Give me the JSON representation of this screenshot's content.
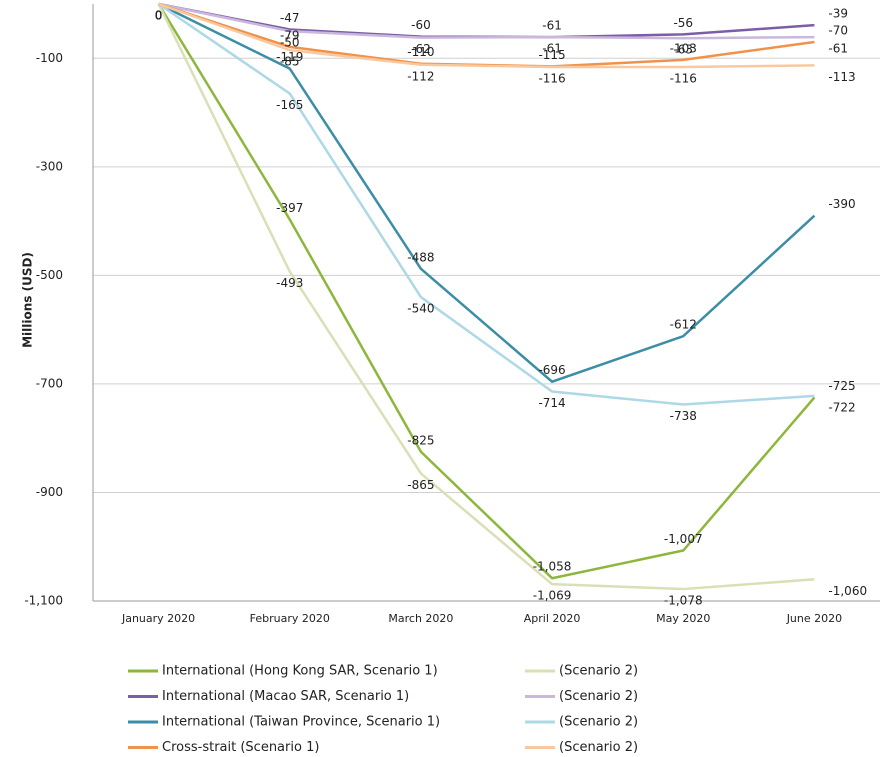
{
  "chart_data": {
    "type": "line",
    "y_label": "Millions (USD)",
    "categories": [
      "January 2020",
      "February 2020",
      "March 2020",
      "April 2020",
      "May 2020",
      "June 2020"
    ],
    "ylim": [
      -1100,
      0
    ],
    "yticks": [
      -100,
      -300,
      -500,
      -700,
      -900,
      {
        "value": -1100,
        "label": "-1,100"
      }
    ],
    "grid": true,
    "legend": "bottom",
    "series": [
      {
        "name": "International (Hong Kong SAR, Scenario 1)",
        "color": "#8db63c",
        "label_pos": "above",
        "values": [
          0,
          -397,
          -825,
          -1058,
          -1007,
          -725
        ],
        "value_labels": [
          "0",
          "-397",
          "-825",
          "-1,058",
          "-1,007",
          "-725"
        ]
      },
      {
        "name": "(Scenario 2)",
        "color": "#d9e0b5",
        "label_pos": "below",
        "values": [
          0,
          -493,
          -865,
          -1069,
          -1078,
          -1060
        ],
        "value_labels": [
          "0",
          "-493",
          "-865",
          "-1,069",
          "-1,078",
          "-1,060"
        ]
      },
      {
        "name": "International (Macao SAR, Scenario 1)",
        "color": "#7b5ea7",
        "label_pos": "above",
        "values": [
          0,
          -47,
          -60,
          -61,
          -56,
          -39
        ]
      },
      {
        "name": "(Scenario 2)",
        "color": "#c9b8dc",
        "label_pos": "below",
        "values": [
          0,
          -50,
          -62,
          -61,
          -63,
          -61
        ]
      },
      {
        "name": "International (Taiwan Province, Scenario 1)",
        "color": "#3b8ea5",
        "label_pos": "above",
        "values": [
          0,
          -119,
          -488,
          -696,
          -612,
          -390
        ]
      },
      {
        "name": "(Scenario 2)",
        "color": "#aed8e6",
        "label_pos": "below",
        "values": [
          0,
          -165,
          -540,
          -714,
          -738,
          -722
        ]
      },
      {
        "name": "Cross-strait (Scenario 1)",
        "color": "#f0924a",
        "label_pos": "above",
        "values": [
          0,
          -79,
          -110,
          -115,
          -103,
          -70
        ]
      },
      {
        "name": "(Scenario 2)",
        "color": "#f8c9a0",
        "label_pos": "below",
        "values": [
          0,
          -85,
          -112,
          -116,
          -116,
          -113
        ]
      }
    ]
  }
}
